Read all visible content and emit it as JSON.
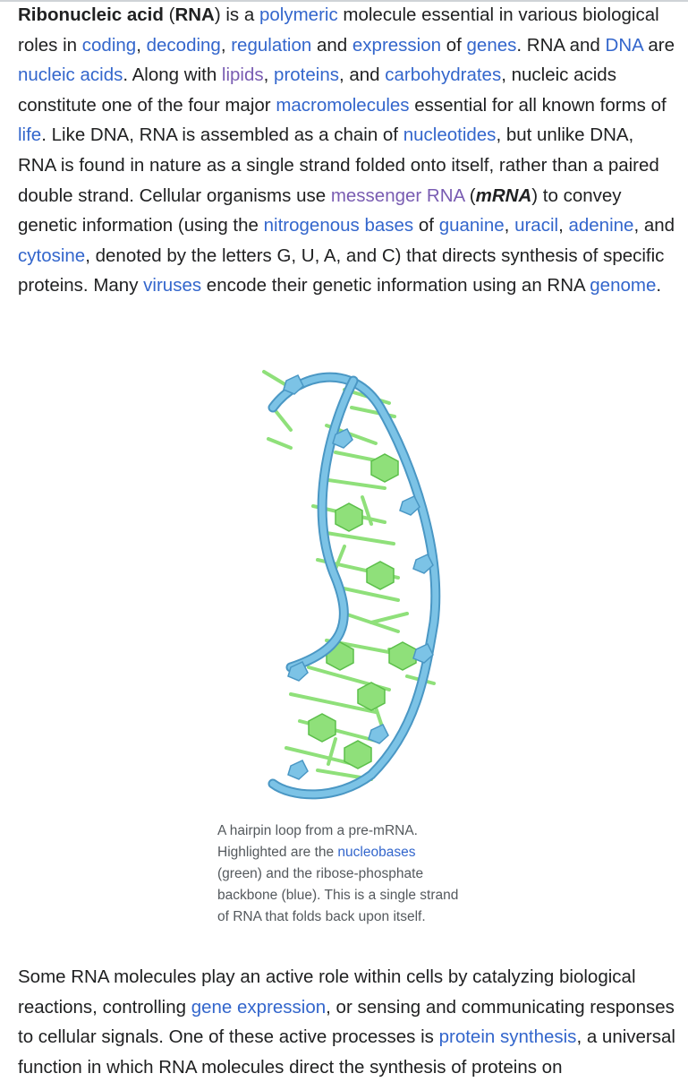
{
  "intro": {
    "t1": "Ribonucleic acid",
    "t2": " (",
    "t3": "RNA",
    "t4": ") is a ",
    "l_polymeric": "polymeric",
    "t5": " molecule essential in various biological roles in ",
    "l_coding": "coding",
    "t6": ", ",
    "l_decoding": "decoding",
    "t7": ", ",
    "l_regulation": "regulation",
    "t8": " and ",
    "l_expression": "expression",
    "t9": " of ",
    "l_genes": "genes",
    "t10": ". RNA and ",
    "l_dna": "DNA",
    "t11": " are ",
    "l_nucleic_acids": "nucleic acids",
    "t12": ". Along with ",
    "l_lipids": "lipids",
    "t13": ", ",
    "l_proteins": "proteins",
    "t14": ", and ",
    "l_carbohydrates": "carbohydrates",
    "t15": ", nucleic acids constitute one of the four major ",
    "l_macromolecules": "macromolecules",
    "t16": " essential for all known forms of ",
    "l_life": "life",
    "t17": ". Like DNA, RNA is assembled as a chain of ",
    "l_nucleotides": "nucleotides",
    "t18": ", but unlike DNA, RNA is found in nature as a single strand folded onto itself, rather than a paired double strand. Cellular organisms use ",
    "l_messenger_rna": "messenger RNA",
    "t19": " (",
    "t20": "mRNA",
    "t21": ") to convey genetic information (using the ",
    "l_nitrogenous_bases": "nitrogenous bases",
    "t22": " of ",
    "l_guanine": "guanine",
    "t23": ", ",
    "l_uracil": "uracil",
    "t24": ", ",
    "l_adenine": "adenine",
    "t25": ", and ",
    "l_cytosine": "cytosine",
    "t26": ", denoted by the letters G, U, A, and C) that directs synthesis of specific proteins. Many ",
    "l_viruses": "viruses",
    "t27": " encode their genetic information using an RNA ",
    "l_genome": "genome",
    "t28": "."
  },
  "figure": {
    "caption_1": "A hairpin loop from a pre-mRNA. Highlighted are the ",
    "caption_link": "nucleobases",
    "caption_2": " (green) and the ribose-phosphate backbone (blue). This is a single strand of RNA that folds back upon itself.",
    "colors": {
      "backbone": "#6fb8de",
      "backbone_dark": "#4a97c4",
      "bases": "#8fe07a",
      "bases_dark": "#5cbf4a"
    }
  },
  "second": {
    "t1": "Some RNA molecules play an active role within cells by catalyzing biological reactions, controlling ",
    "l_gene_expression": "gene expression",
    "t2": ", or sensing and communicating responses to cellular signals. One of these active processes is ",
    "l_protein_synthesis": "protein synthesis",
    "t3": ", a universal function in which RNA molecules direct the synthesis of proteins on"
  }
}
